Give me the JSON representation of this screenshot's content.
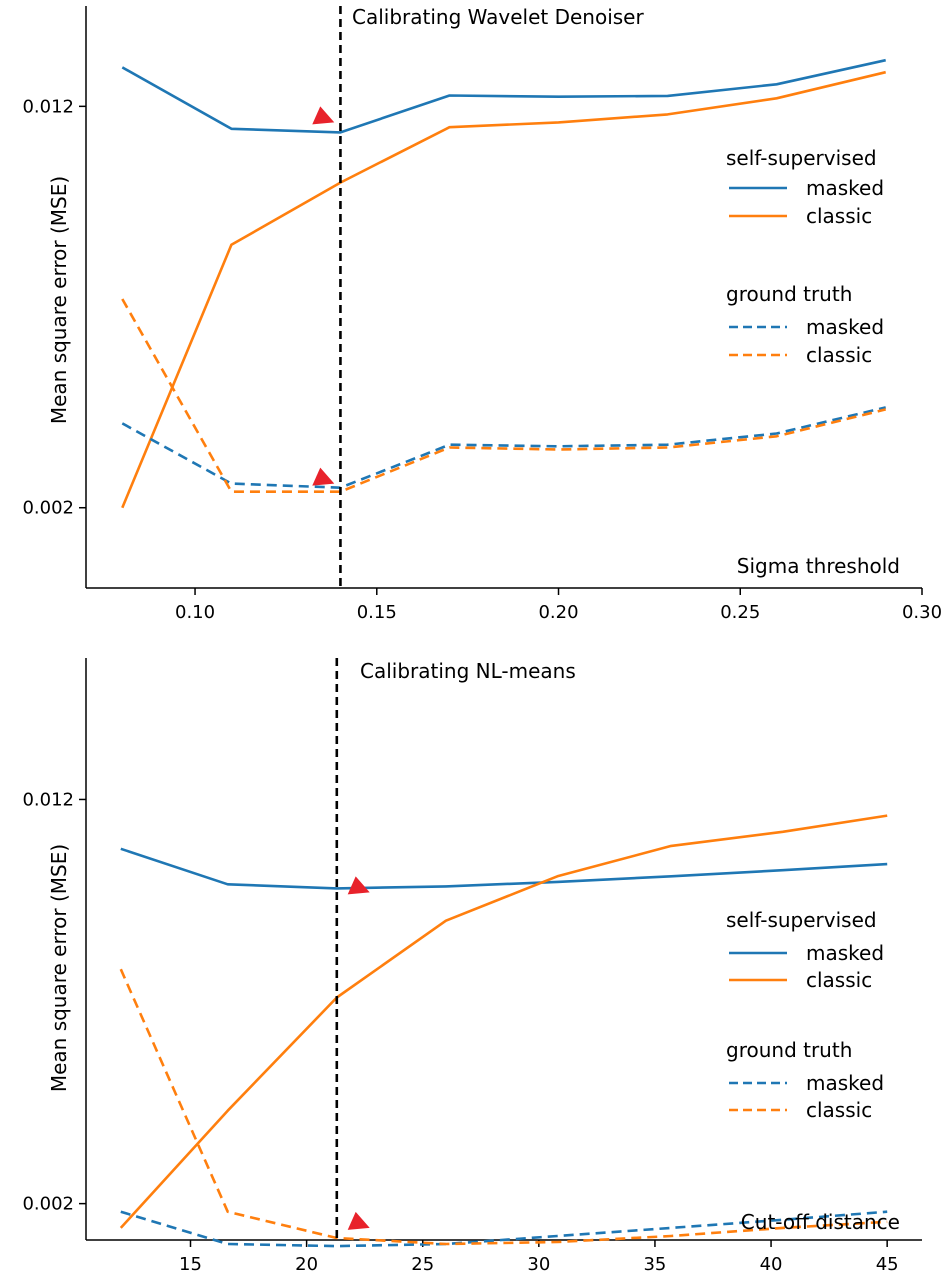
{
  "colors": {
    "blue": "#1f77b4",
    "orange": "#ff7f0e",
    "marker": "#e8222b",
    "axis": "#000000"
  },
  "chart_data": [
    {
      "type": "line",
      "title": "Calibrating Wavelet Denoiser",
      "xlabel": "Sigma threshold",
      "ylabel": "Mean square error (MSE)",
      "xlim": [
        0.07,
        0.3
      ],
      "ylim": [
        0.0,
        0.0145
      ],
      "xticks": [
        0.1,
        0.15,
        0.2,
        0.25,
        0.3
      ],
      "xtick_labels": [
        "0.10",
        "0.15",
        "0.20",
        "0.25",
        "0.30"
      ],
      "yticks": [
        0.002,
        0.012
      ],
      "ytick_labels": [
        "0.002",
        "0.012"
      ],
      "x": [
        0.08,
        0.11,
        0.14,
        0.17,
        0.2,
        0.23,
        0.26,
        0.29
      ],
      "calibration_x": 0.14,
      "legend_groups": [
        {
          "title": "self-supervised",
          "entries": [
            "masked",
            "classic"
          ]
        },
        {
          "title": "ground truth",
          "entries": [
            "masked",
            "classic"
          ]
        }
      ],
      "series": [
        {
          "group": "self-supervised",
          "label": "masked",
          "color": "blue",
          "dash": false,
          "values": [
            0.01297,
            0.01144,
            0.01135,
            0.01227,
            0.01224,
            0.01226,
            0.01255,
            0.01315
          ]
        },
        {
          "group": "self-supervised",
          "label": "classic",
          "color": "orange",
          "dash": false,
          "values": [
            0.002,
            0.00855,
            0.0101,
            0.01148,
            0.0116,
            0.0118,
            0.0122,
            0.01285
          ]
        },
        {
          "group": "ground truth",
          "label": "masked",
          "color": "blue",
          "dash": true,
          "values": [
            0.0041,
            0.0026,
            0.0025,
            0.00357,
            0.00353,
            0.00357,
            0.00385,
            0.0045
          ]
        },
        {
          "group": "ground truth",
          "label": "classic",
          "color": "orange",
          "dash": true,
          "values": [
            0.0072,
            0.0024,
            0.0024,
            0.0035,
            0.00345,
            0.0035,
            0.00378,
            0.00445
          ]
        }
      ],
      "markers": [
        {
          "x": 0.135,
          "y": 0.01175
        },
        {
          "x": 0.135,
          "y": 0.00275
        }
      ]
    },
    {
      "type": "line",
      "title": "Calibrating NL-means",
      "xlabel": "Cut-off distance",
      "ylabel": "Mean square error (MSE)",
      "xlim": [
        10.5,
        46.5
      ],
      "ylim": [
        0.0011,
        0.0155
      ],
      "xticks": [
        15,
        20,
        25,
        30,
        35,
        40,
        45
      ],
      "xtick_labels": [
        "15",
        "20",
        "25",
        "30",
        "35",
        "40",
        "45"
      ],
      "yticks": [
        0.002,
        0.012
      ],
      "ytick_labels": [
        "0.002",
        "0.012"
      ],
      "x": [
        12.0,
        16.6,
        21.3,
        26.0,
        30.8,
        35.7,
        40.5,
        45.0
      ],
      "calibration_x": 21.3,
      "legend_groups": [
        {
          "title": "self-supervised",
          "entries": [
            "masked",
            "classic"
          ]
        },
        {
          "title": "ground truth",
          "entries": [
            "masked",
            "classic"
          ]
        }
      ],
      "series": [
        {
          "group": "self-supervised",
          "label": "masked",
          "color": "blue",
          "dash": false,
          "values": [
            0.01078,
            0.0099,
            0.0098,
            0.00985,
            0.00996,
            0.0101,
            0.01025,
            0.0104
          ]
        },
        {
          "group": "self-supervised",
          "label": "classic",
          "color": "orange",
          "dash": false,
          "values": [
            0.0014,
            0.0043,
            0.0071,
            0.009,
            0.0101,
            0.01085,
            0.0112,
            0.0116
          ]
        },
        {
          "group": "ground truth",
          "label": "masked",
          "color": "blue",
          "dash": true,
          "values": [
            0.0018,
            0.001,
            0.00095,
            0.001,
            0.0012,
            0.0014,
            0.0016,
            0.0018
          ]
        },
        {
          "group": "ground truth",
          "label": "classic",
          "color": "orange",
          "dash": true,
          "values": [
            0.0078,
            0.0018,
            0.00115,
            0.001,
            0.00105,
            0.0012,
            0.0014,
            0.00155
          ]
        }
      ],
      "markers": [
        {
          "x": 22.2,
          "y": 0.00985
        },
        {
          "x": 22.2,
          "y": 0.00155
        }
      ]
    }
  ]
}
